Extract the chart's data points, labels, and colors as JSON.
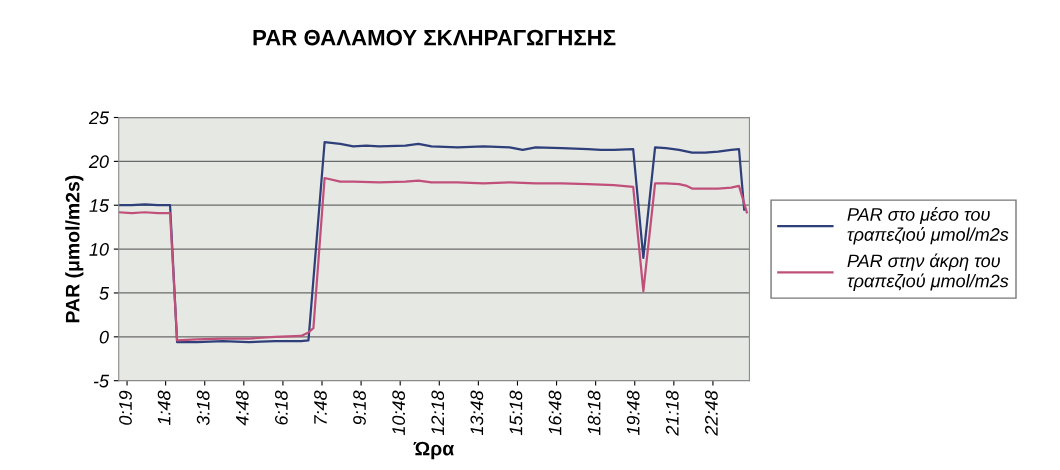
{
  "chart_data": {
    "type": "line",
    "title": "PAR ΘΑΛΑΜΟΥ ΣΚΛΗΡΑΓΩΓΗΣΗΣ",
    "xlabel": "Ώρα",
    "ylabel": "PAR (μmol/m2s)",
    "xlim": [
      0,
      24.2
    ],
    "ylim": [
      -5,
      25
    ],
    "yticks": [
      -5,
      0,
      5,
      10,
      15,
      20,
      25
    ],
    "xticks": [
      {
        "value": 0.32,
        "label": "0:19"
      },
      {
        "value": 1.8,
        "label": "1:48"
      },
      {
        "value": 3.3,
        "label": "3:18"
      },
      {
        "value": 4.8,
        "label": "4:48"
      },
      {
        "value": 6.3,
        "label": "6:18"
      },
      {
        "value": 7.8,
        "label": "7:48"
      },
      {
        "value": 9.3,
        "label": "9:18"
      },
      {
        "value": 10.8,
        "label": "10:48"
      },
      {
        "value": 12.3,
        "label": "12:18"
      },
      {
        "value": 13.8,
        "label": "13:48"
      },
      {
        "value": 15.3,
        "label": "15:18"
      },
      {
        "value": 16.8,
        "label": "16:48"
      },
      {
        "value": 18.3,
        "label": "18:18"
      },
      {
        "value": 19.8,
        "label": "19:48"
      },
      {
        "value": 21.3,
        "label": "21:18"
      },
      {
        "value": 22.8,
        "label": "22:48"
      }
    ],
    "grid": "y",
    "legend": "right",
    "marker": "none",
    "line_style": "solid",
    "series": [
      {
        "name": "PAR στο μέσο του τραπεζιού μmol/m2s",
        "color": "#2e3f7a",
        "x": [
          0.0,
          0.5,
          1.0,
          1.5,
          1.97,
          2.24,
          3.0,
          4.0,
          5.0,
          6.0,
          7.0,
          7.28,
          7.9,
          8.5,
          9.0,
          9.5,
          10.0,
          11.0,
          11.5,
          12.0,
          13.0,
          14.0,
          15.0,
          15.5,
          16.0,
          17.0,
          18.0,
          18.5,
          19.0,
          19.74,
          20.13,
          20.58,
          21.0,
          21.5,
          22.0,
          22.5,
          23.0,
          23.5,
          23.8,
          24.0
        ],
        "values": [
          15.0,
          15.0,
          15.1,
          15.0,
          15.0,
          -0.6,
          -0.6,
          -0.5,
          -0.6,
          -0.5,
          -0.5,
          -0.4,
          22.2,
          22.0,
          21.7,
          21.8,
          21.7,
          21.8,
          22.0,
          21.7,
          21.6,
          21.7,
          21.6,
          21.3,
          21.6,
          21.5,
          21.4,
          21.3,
          21.3,
          21.4,
          9.0,
          21.6,
          21.5,
          21.3,
          21.0,
          21.0,
          21.1,
          21.3,
          21.4,
          14.5
        ]
      },
      {
        "name": "PAR στην άκρη του τραπεζιού μmol/m2s",
        "color": "#c0507a",
        "x": [
          0.0,
          0.5,
          1.0,
          1.5,
          1.97,
          2.24,
          3.0,
          4.0,
          5.0,
          6.0,
          7.0,
          7.28,
          7.47,
          7.9,
          8.5,
          9.0,
          10.0,
          11.0,
          11.5,
          12.0,
          13.0,
          14.0,
          15.0,
          16.0,
          17.0,
          18.0,
          19.0,
          19.74,
          20.13,
          20.58,
          21.0,
          21.5,
          21.8,
          22.0,
          22.5,
          23.0,
          23.5,
          23.8,
          24.1
        ],
        "values": [
          14.2,
          14.1,
          14.2,
          14.1,
          14.1,
          -0.4,
          -0.3,
          -0.2,
          -0.2,
          0.0,
          0.1,
          0.5,
          1.0,
          18.1,
          17.7,
          17.7,
          17.6,
          17.7,
          17.8,
          17.6,
          17.6,
          17.5,
          17.6,
          17.5,
          17.5,
          17.4,
          17.3,
          17.1,
          5.2,
          17.5,
          17.5,
          17.4,
          17.2,
          16.9,
          16.9,
          16.9,
          17.0,
          17.2,
          14.2
        ]
      }
    ]
  }
}
